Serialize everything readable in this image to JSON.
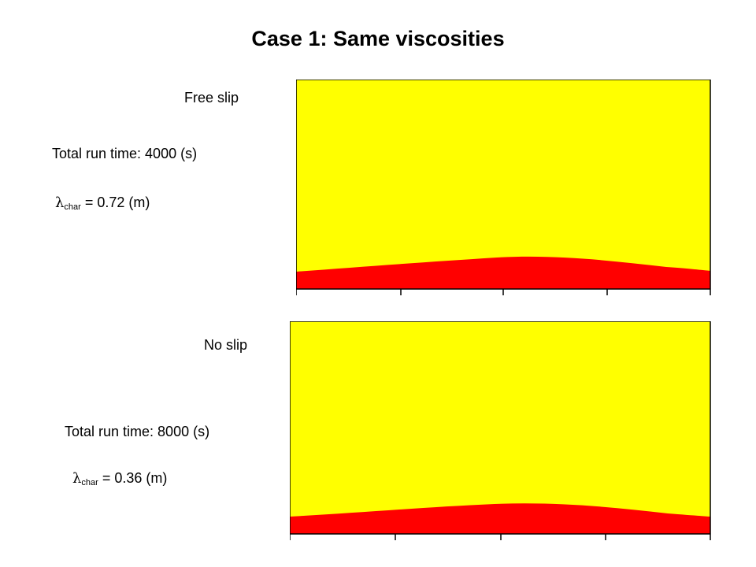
{
  "title": "Case 1: Same viscosities",
  "colors": {
    "upper_fluid": "#ffff00",
    "lower_fluid": "#ff0000",
    "frame": "#000000",
    "background": "#ffffff"
  },
  "panels": [
    {
      "condition": "Free slip",
      "run_time_text": "Total run time: 4000 (s)",
      "lambda_symbol": "λ",
      "lambda_subscript": "char",
      "lambda_value_text": " = 0.72 (m)"
    },
    {
      "condition": "No slip",
      "run_time_text": "Total run time: 8000 (s)",
      "lambda_symbol": "λ",
      "lambda_subscript": "char",
      "lambda_value_text": " = 0.36 (m)"
    }
  ]
}
